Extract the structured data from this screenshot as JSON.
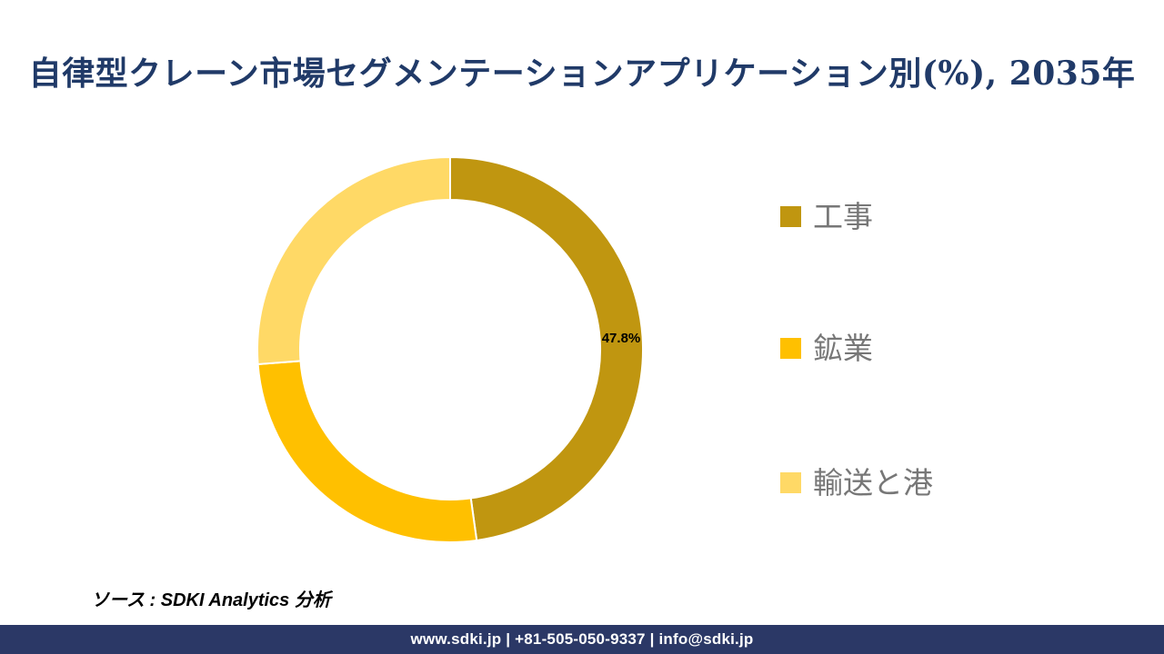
{
  "title": "自律型クレーン市場セグメンテーションアプリケーション別(%), 2035年",
  "title_color": "#203A68",
  "source_note": "ソース : SDKI Analytics 分析",
  "footer": {
    "text": "www.sdki.jp | +81-505-050-9337 | info@sdki.jp",
    "bg_color": "#2B3866",
    "text_color": "#FFFFFF"
  },
  "chart_data": {
    "type": "pie",
    "subtype": "donut",
    "title": "自律型クレーン市場セグメンテーションアプリケーション別(%), 2035年",
    "unit": "%",
    "start_angle_deg": 0,
    "direction": "clockwise",
    "inner_radius_ratio": 0.778,
    "legend_position": "right",
    "legend_text_color": "#777777",
    "segments": [
      {
        "label": "工事",
        "value": 47.8,
        "color": "#C09610",
        "data_label": "47.8%"
      },
      {
        "label": "鉱業",
        "value": 26.0,
        "color": "#FFC000",
        "data_label": ""
      },
      {
        "label": "輸送と港",
        "value": 26.2,
        "color": "#FFD966",
        "data_label": ""
      }
    ]
  }
}
